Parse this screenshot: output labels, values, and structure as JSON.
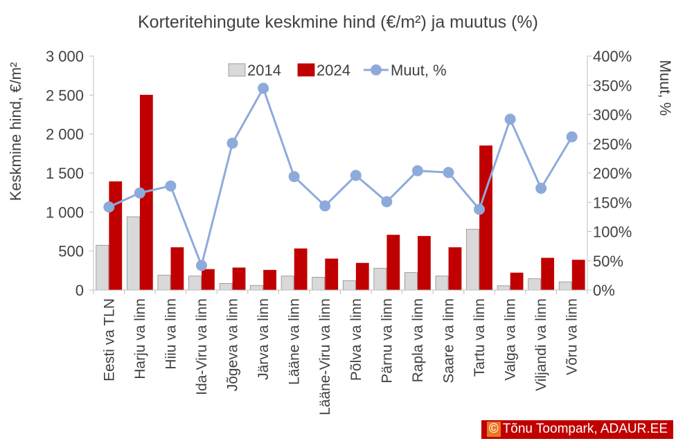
{
  "chart_data": {
    "type": "bar",
    "title": "Korteritehingute keskmine hind (€/m²) ja muutus (%)",
    "ylabel": "Keskmine hind, €/m²",
    "y2label": "Muut, %",
    "ylim": [
      0,
      3000
    ],
    "y2lim": [
      0,
      400
    ],
    "yticks": [
      {
        "value": 0,
        "label": "0"
      },
      {
        "value": 500,
        "label": "500"
      },
      {
        "value": 1000,
        "label": "1 000"
      },
      {
        "value": 1500,
        "label": "1 500"
      },
      {
        "value": 2000,
        "label": "2 000"
      },
      {
        "value": 2500,
        "label": "2 500"
      },
      {
        "value": 3000,
        "label": "3 000"
      }
    ],
    "y2ticks": [
      {
        "value": 0,
        "label": "0%"
      },
      {
        "value": 50,
        "label": "50%"
      },
      {
        "value": 100,
        "label": "100%"
      },
      {
        "value": 150,
        "label": "150%"
      },
      {
        "value": 200,
        "label": "200%"
      },
      {
        "value": 250,
        "label": "250%"
      },
      {
        "value": 300,
        "label": "300%"
      },
      {
        "value": 350,
        "label": "350%"
      },
      {
        "value": 400,
        "label": "400%"
      }
    ],
    "grid": false,
    "legend_position": "top",
    "categories": [
      "Eesti va TLN",
      "Harju va linn",
      "Hiiu va linn",
      "Ida-Viru va linn",
      "Jõgeva va linn",
      "Järva va linn",
      "Lääne va linn",
      "Lääne-Viru va linn",
      "Põlva va linn",
      "Pärnu va linn",
      "Rapla va linn",
      "Saare va linn",
      "Tartu va linn",
      "Valga va linn",
      "Viljandi va linn",
      "Võru va linn"
    ],
    "series": [
      {
        "name": "2014",
        "type": "bar",
        "axis": "left",
        "color": "#d9d9d9",
        "stroke": "#8c8c8c",
        "values": [
          575,
          940,
          190,
          180,
          85,
          60,
          180,
          165,
          120,
          280,
          225,
          180,
          780,
          55,
          145,
          105
        ]
      },
      {
        "name": "2024",
        "type": "bar",
        "axis": "left",
        "color": "#c00000",
        "stroke": "#c00000",
        "values": [
          1390,
          2500,
          545,
          265,
          285,
          255,
          530,
          400,
          345,
          705,
          690,
          545,
          1850,
          220,
          410,
          385
        ]
      },
      {
        "name": "Muut, %",
        "type": "line",
        "axis": "right",
        "color": "#8eaadb",
        "values": [
          142,
          166,
          178,
          42,
          251,
          345,
          194,
          144,
          196,
          151,
          204,
          201,
          138,
          292,
          174,
          262
        ]
      }
    ]
  },
  "credit": {
    "symbol": "©",
    "text": "Tõnu Toompark, ADAUR.EE"
  }
}
